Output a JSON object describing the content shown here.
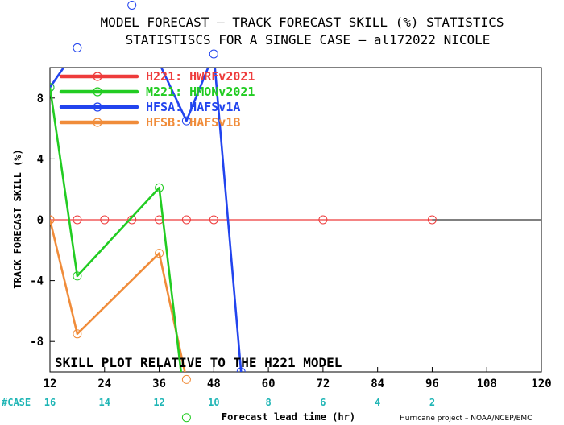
{
  "chart_data": {
    "type": "line",
    "title": "MODEL FORECAST – TRACK FORECAST SKILL (%) STATISTICS",
    "subtitle": "STATISTISCS FOR A SINGLE CASE – al172022_NICOLE",
    "xlabel": "Forecast lead time (hr)",
    "ylabel": "TRACK FORECAST SKILL (%)",
    "xlim": [
      12,
      120
    ],
    "ylim": [
      -10,
      10
    ],
    "x_ticks": [
      12,
      24,
      36,
      48,
      60,
      72,
      84,
      96,
      108,
      120
    ],
    "y_ticks": [
      -8,
      -4,
      0,
      4,
      8
    ],
    "annotation": "SKILL PLOT RELATIVE TO THE H221 MODEL",
    "case_label": "#CASE",
    "case_counts": [
      {
        "x": 12,
        "n": "16"
      },
      {
        "x": 24,
        "n": "14"
      },
      {
        "x": 36,
        "n": "12"
      },
      {
        "x": 48,
        "n": "10"
      },
      {
        "x": 60,
        "n": "8"
      },
      {
        "x": 72,
        "n": "6"
      },
      {
        "x": 84,
        "n": "4"
      },
      {
        "x": 96,
        "n": "2"
      }
    ],
    "credit": "Hurricane project – NOAA/NCEP/EMC",
    "series": [
      {
        "name": "H221: HWRFv2021",
        "color": "#ee3b3b",
        "x": [
          12,
          18,
          24,
          30,
          36,
          42,
          48,
          72,
          96
        ],
        "y": [
          0,
          0,
          0,
          0,
          0,
          0,
          0,
          0,
          0
        ]
      },
      {
        "name": "M221: HMONv2021",
        "color": "#22cc22",
        "x": [
          12,
          18,
          36,
          42
        ],
        "y": [
          8.7,
          -3.7,
          2.1,
          -13.0
        ]
      },
      {
        "name": "HFSA: HAFSv1A",
        "color": "#2244ee",
        "x": [
          12,
          18,
          30,
          42,
          48,
          54
        ],
        "y": [
          8.7,
          11.3,
          14.1,
          6.5,
          10.9,
          -10.0
        ]
      },
      {
        "name": "HFSB: HAFSv1B",
        "color": "#f08c3a",
        "x": [
          12,
          18,
          36,
          42
        ],
        "y": [
          0,
          -7.5,
          -2.2,
          -10.5
        ]
      }
    ]
  }
}
